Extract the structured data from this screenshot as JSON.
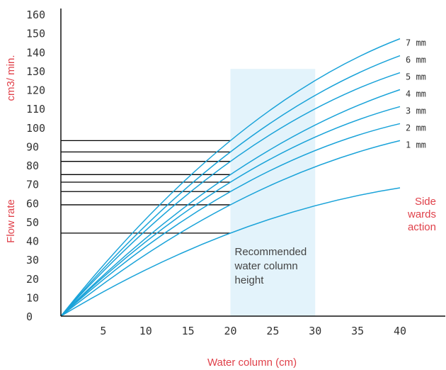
{
  "colors": {
    "curve": "#1aa3d9",
    "axis": "#111111",
    "band": "#e3f3fb",
    "label_red": "#e0414a"
  },
  "chart_data": {
    "type": "line",
    "xlabel": "Water column (cm)",
    "ylabel": "Flow rate",
    "y_unit": "cm3/ min.",
    "xlim": [
      0,
      45
    ],
    "ylim": [
      0,
      160
    ],
    "x_ticks": [
      5,
      10,
      15,
      20,
      25,
      30,
      35,
      40
    ],
    "y_ticks": [
      0,
      10,
      20,
      30,
      40,
      50,
      60,
      70,
      80,
      90,
      100,
      110,
      120,
      130,
      140,
      150,
      160
    ],
    "recommended_band": {
      "x_range": [
        20,
        30
      ],
      "y_top": 131,
      "label_lines": [
        "Recommended",
        "water column",
        "height"
      ]
    },
    "series": [
      {
        "name": "7 mm",
        "x": [
          0,
          20,
          40
        ],
        "y": [
          0,
          93,
          147
        ]
      },
      {
        "name": "6 mm",
        "x": [
          0,
          20,
          40
        ],
        "y": [
          0,
          87,
          138
        ]
      },
      {
        "name": "5 mm",
        "x": [
          0,
          20,
          40
        ],
        "y": [
          0,
          82,
          129
        ]
      },
      {
        "name": "4 mm",
        "x": [
          0,
          20,
          40
        ],
        "y": [
          0,
          75,
          120
        ]
      },
      {
        "name": "3 mm",
        "x": [
          0,
          20,
          40
        ],
        "y": [
          0,
          71,
          111
        ]
      },
      {
        "name": "2 mm",
        "x": [
          0,
          20,
          40
        ],
        "y": [
          0,
          66,
          102
        ]
      },
      {
        "name": "1 mm",
        "x": [
          0,
          20,
          40
        ],
        "y": [
          0,
          59,
          93
        ]
      },
      {
        "name": "Side wards action",
        "label_lines": [
          "Side",
          "wards",
          "action"
        ],
        "x": [
          0,
          20,
          40
        ],
        "y": [
          0,
          44,
          68
        ]
      }
    ],
    "reference_lines_at_x": 20
  }
}
